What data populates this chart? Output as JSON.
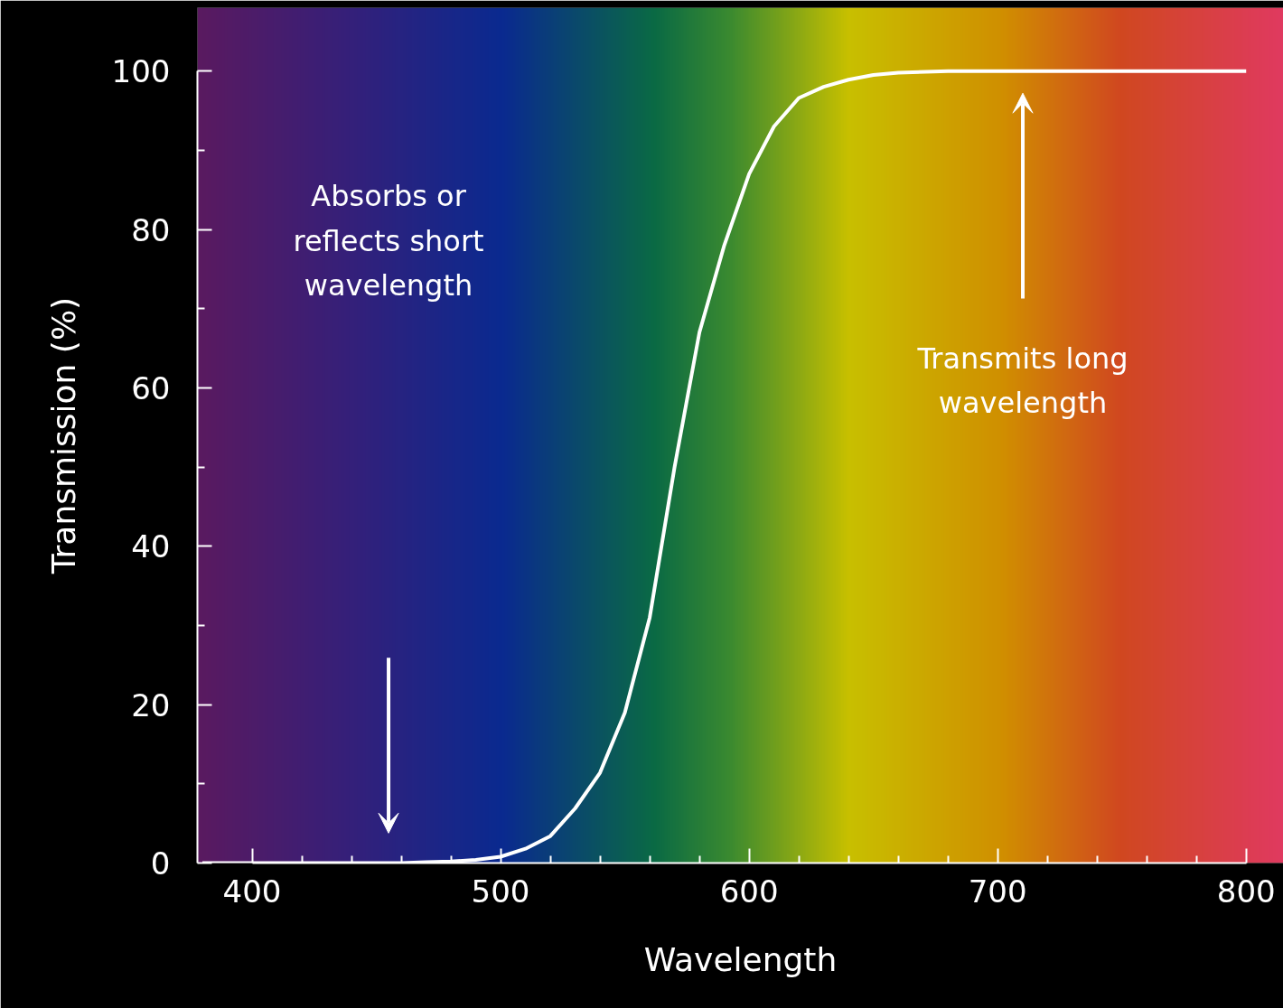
{
  "chart_data": {
    "type": "line",
    "xlabel": "Wavelength",
    "ylabel": "Transmission (%)",
    "x": [
      380,
      400,
      420,
      440,
      460,
      470,
      480,
      490,
      500,
      510,
      520,
      530,
      540,
      550,
      560,
      570,
      580,
      590,
      600,
      610,
      620,
      630,
      640,
      650,
      660,
      680,
      700,
      750,
      800
    ],
    "series": [
      {
        "color": "#ffffff",
        "values": [
          0,
          0,
          0,
          0,
          0,
          0.1,
          0.2,
          0.4,
          0.8,
          1.8,
          3.4,
          6.9,
          11.4,
          19,
          31,
          50,
          67,
          78,
          87,
          93,
          96.6,
          98,
          98.9,
          99.5,
          99.8,
          100,
          100,
          100,
          100
        ]
      }
    ],
    "xlim": [
      378,
      815
    ],
    "ylim": [
      0,
      108
    ],
    "xticks": [
      400,
      {
        "value": 420,
        "label": null
      },
      {
        "value": 440,
        "label": null
      },
      {
        "value": 460,
        "label": null
      },
      {
        "value": 480,
        "label": null
      },
      500,
      {
        "value": 520,
        "label": null
      },
      {
        "value": 540,
        "label": null
      },
      {
        "value": 560,
        "label": null
      },
      {
        "value": 580,
        "label": null
      },
      600,
      {
        "value": 620,
        "label": null
      },
      {
        "value": 640,
        "label": null
      },
      {
        "value": 660,
        "label": null
      },
      {
        "value": 680,
        "label": null
      },
      700,
      {
        "value": 720,
        "label": null
      },
      {
        "value": 740,
        "label": null
      },
      {
        "value": 760,
        "label": null
      },
      {
        "value": 780,
        "label": null
      },
      800
    ],
    "yticks": [
      0,
      {
        "value": 10,
        "label": null
      },
      20,
      {
        "value": 30,
        "label": null
      },
      40,
      {
        "value": 50,
        "label": null
      },
      60,
      {
        "value": 70,
        "label": null
      },
      80,
      {
        "value": 90,
        "label": null
      },
      100
    ],
    "annotations": [
      "Absorbs or\nreflects short\nwavelength",
      "Transmits long\nwavelength"
    ],
    "grid": false,
    "marker": "none",
    "line_style": "solid"
  }
}
